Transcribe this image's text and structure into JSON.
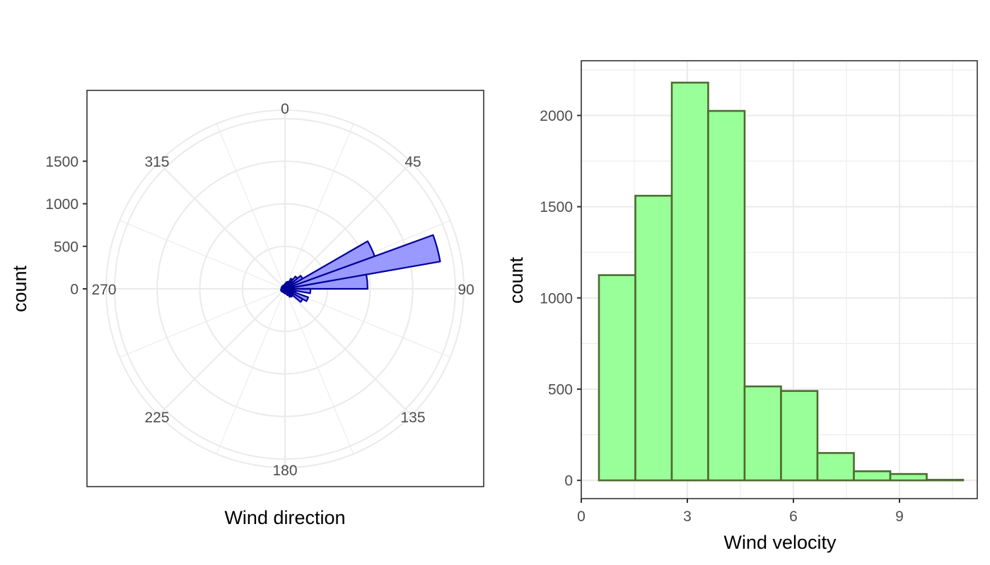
{
  "chart_data": [
    {
      "type": "bar",
      "coord": "polar",
      "xlabel": "Wind direction",
      "ylabel": "count",
      "theta_tick_labels": [
        "0",
        "45",
        "90",
        "135",
        "180",
        "225",
        "270",
        "315"
      ],
      "y_tick_labels": [
        "0",
        "500",
        "1000",
        "1500"
      ],
      "ylim": [
        0,
        2100
      ],
      "grid": true,
      "bar_fill": "#9999ff",
      "bar_stroke": "#000099",
      "bins": [
        {
          "start": 0,
          "end": 10,
          "count": 60
        },
        {
          "start": 10,
          "end": 20,
          "count": 80
        },
        {
          "start": 20,
          "end": 30,
          "count": 90
        },
        {
          "start": 30,
          "end": 40,
          "count": 140
        },
        {
          "start": 40,
          "end": 50,
          "count": 190
        },
        {
          "start": 50,
          "end": 60,
          "count": 240
        },
        {
          "start": 60,
          "end": 70,
          "count": 1120
        },
        {
          "start": 70,
          "end": 80,
          "count": 1850
        },
        {
          "start": 80,
          "end": 90,
          "count": 970
        },
        {
          "start": 90,
          "end": 100,
          "count": 300
        },
        {
          "start": 100,
          "end": 110,
          "count": 130
        },
        {
          "start": 110,
          "end": 120,
          "count": 290
        },
        {
          "start": 120,
          "end": 130,
          "count": 240
        },
        {
          "start": 130,
          "end": 140,
          "count": 120
        },
        {
          "start": 140,
          "end": 150,
          "count": 110
        },
        {
          "start": 150,
          "end": 160,
          "count": 80
        },
        {
          "start": 160,
          "end": 170,
          "count": 60
        },
        {
          "start": 170,
          "end": 180,
          "count": 55
        },
        {
          "start": 180,
          "end": 190,
          "count": 50
        },
        {
          "start": 190,
          "end": 200,
          "count": 45
        },
        {
          "start": 200,
          "end": 210,
          "count": 45
        },
        {
          "start": 210,
          "end": 220,
          "count": 40
        },
        {
          "start": 220,
          "end": 230,
          "count": 45
        },
        {
          "start": 230,
          "end": 240,
          "count": 50
        },
        {
          "start": 240,
          "end": 250,
          "count": 45
        },
        {
          "start": 250,
          "end": 260,
          "count": 50
        },
        {
          "start": 260,
          "end": 270,
          "count": 45
        },
        {
          "start": 270,
          "end": 280,
          "count": 40
        },
        {
          "start": 280,
          "end": 290,
          "count": 40
        },
        {
          "start": 290,
          "end": 300,
          "count": 45
        },
        {
          "start": 300,
          "end": 310,
          "count": 40
        },
        {
          "start": 310,
          "end": 320,
          "count": 40
        },
        {
          "start": 320,
          "end": 330,
          "count": 45
        },
        {
          "start": 330,
          "end": 340,
          "count": 40
        },
        {
          "start": 340,
          "end": 350,
          "count": 45
        },
        {
          "start": 350,
          "end": 360,
          "count": 50
        }
      ]
    },
    {
      "type": "bar",
      "subtype": "histogram",
      "xlabel": "Wind velocity",
      "ylabel": "count",
      "x_ticks": [
        0,
        3,
        6,
        9
      ],
      "y_ticks": [
        0,
        500,
        1000,
        1500,
        2000
      ],
      "xlim": [
        0,
        11.2
      ],
      "ylim": [
        -100,
        2300
      ],
      "grid": true,
      "bar_fill": "#99ff99",
      "bar_stroke": "#4d6b2e",
      "bins": [
        {
          "start": 0.5,
          "end": 1.53,
          "count": 1125
        },
        {
          "start": 1.53,
          "end": 2.56,
          "count": 1560
        },
        {
          "start": 2.56,
          "end": 3.59,
          "count": 2180
        },
        {
          "start": 3.59,
          "end": 4.62,
          "count": 2025
        },
        {
          "start": 4.62,
          "end": 5.65,
          "count": 515
        },
        {
          "start": 5.65,
          "end": 6.68,
          "count": 490
        },
        {
          "start": 6.68,
          "end": 7.71,
          "count": 150
        },
        {
          "start": 7.71,
          "end": 8.74,
          "count": 50
        },
        {
          "start": 8.74,
          "end": 9.77,
          "count": 35
        },
        {
          "start": 9.77,
          "end": 10.8,
          "count": 3
        }
      ]
    }
  ]
}
